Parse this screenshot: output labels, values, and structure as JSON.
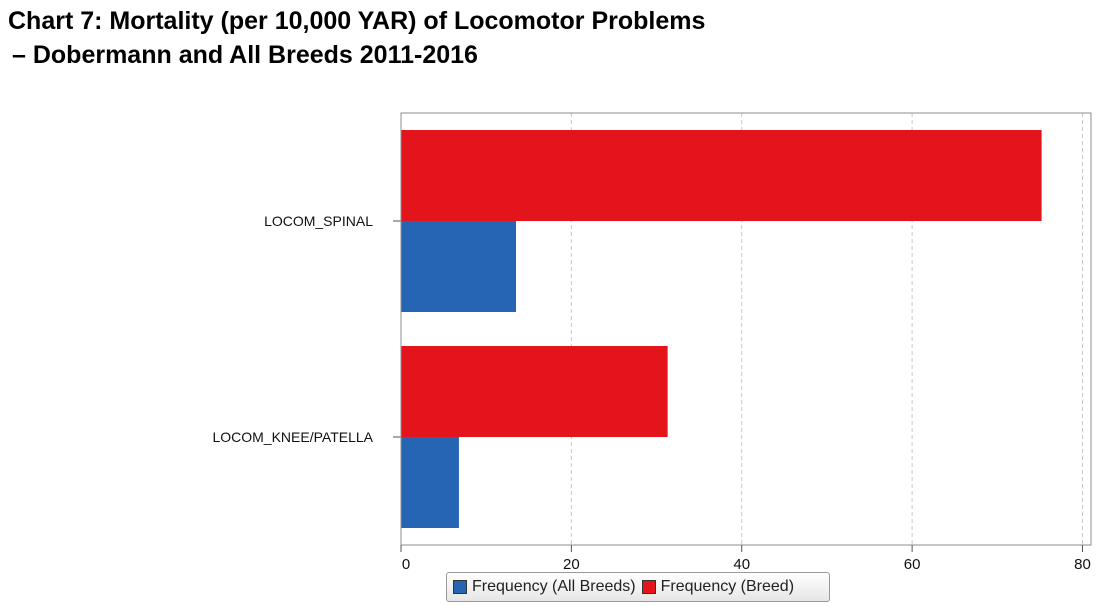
{
  "chart_data": {
    "type": "bar",
    "orientation": "horizontal",
    "title": "Chart 7: Mortality (per 10,000 YAR) of Locomotor Problems",
    "subtitle": "– Dobermann and All Breeds 2011-2016",
    "xlabel": "",
    "ylabel": "",
    "categories": [
      "LOCOM_SPINAL",
      "LOCOM_KNEE/PATELLA"
    ],
    "series": [
      {
        "name": "Frequency (Breed)",
        "values": [
          75.2,
          31.3
        ],
        "color": "#e3141c"
      },
      {
        "name": "Frequency (All Breeds)",
        "values": [
          13.5,
          6.8
        ],
        "color": "#2565b4"
      }
    ],
    "xlim": [
      0,
      81
    ],
    "xticks": [
      0,
      20,
      40,
      60,
      80
    ],
    "grid": true,
    "legend_position": "bottom"
  },
  "legend": {
    "items": [
      {
        "label": "Frequency (All Breeds)",
        "color": "#2565b4"
      },
      {
        "label": "Frequency (Breed)",
        "color": "#e3141c"
      }
    ]
  }
}
